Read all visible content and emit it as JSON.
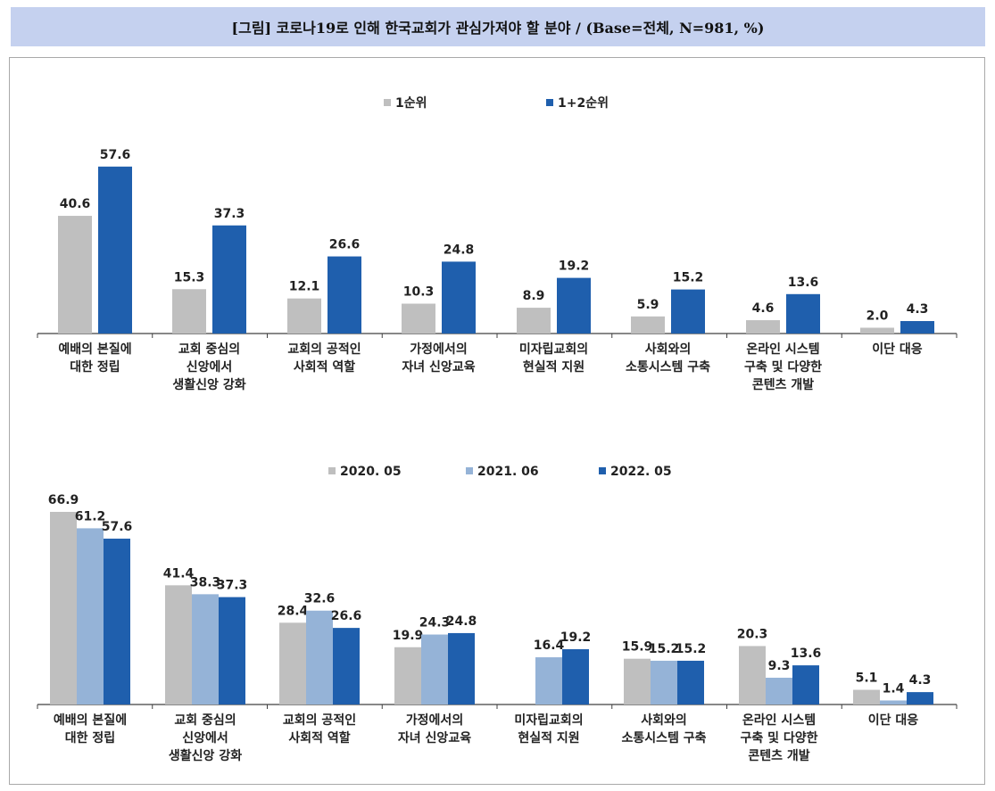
{
  "title": "[그림] 코로나19로 인해 한국교회가 관심가져야 할 분야 / (Base=전체, N=981, %)",
  "colors": {
    "gray": "#bfbfbf",
    "light_blue": "#95b3d7",
    "blue": "#1f5fad",
    "title_bg": "#c5d1ef"
  },
  "chart_data": [
    {
      "type": "bar",
      "categories": [
        [
          "예배의 본질에",
          "대한 정립"
        ],
        [
          "교회 중심의",
          "신앙에서",
          "생활신앙 강화"
        ],
        [
          "교회의 공적인",
          "사회적 역할"
        ],
        [
          "가정에서의",
          "자녀 신앙교육"
        ],
        [
          "미자립교회의",
          "현실적 지원"
        ],
        [
          "사회와의",
          "소통시스템 구축"
        ],
        [
          "온라인 시스템",
          "구축 및 다양한",
          "콘텐츠 개발"
        ],
        [
          "이단 대응"
        ]
      ],
      "series": [
        {
          "name": "1순위",
          "color": "#bfbfbf",
          "values": [
            40.6,
            15.3,
            12.1,
            10.3,
            8.9,
            5.9,
            4.6,
            2.0
          ]
        },
        {
          "name": "1+2순위",
          "color": "#1f5fad",
          "values": [
            57.6,
            37.3,
            26.6,
            24.8,
            19.2,
            15.2,
            13.6,
            4.3
          ]
        }
      ],
      "value_labels": [
        [
          "40.6",
          "15.3",
          "12.1",
          "10.3",
          "8.9",
          "5.9",
          "4.6",
          "2.0"
        ],
        [
          "57.6",
          "37.3",
          "26.6",
          "24.8",
          "19.2",
          "15.2",
          "13.6",
          "4.3"
        ]
      ],
      "ylim": [
        0,
        60
      ],
      "legend": "top-center",
      "grid": false
    },
    {
      "type": "bar",
      "categories": [
        [
          "예배의 본질에",
          "대한 정립"
        ],
        [
          "교회 중심의",
          "신앙에서",
          "생활신앙 강화"
        ],
        [
          "교회의 공적인",
          "사회적 역할"
        ],
        [
          "가정에서의",
          "자녀 신앙교육"
        ],
        [
          "미자립교회의",
          "현실적 지원"
        ],
        [
          "사회와의",
          "소통시스템 구축"
        ],
        [
          "온라인 시스템",
          "구축 및 다양한",
          "콘텐츠 개발"
        ],
        [
          "이단 대응"
        ]
      ],
      "series": [
        {
          "name": "2020. 05",
          "color": "#bfbfbf",
          "values": [
            66.9,
            41.4,
            28.4,
            19.9,
            null,
            15.9,
            20.3,
            5.1
          ]
        },
        {
          "name": "2021. 06",
          "color": "#95b3d7",
          "values": [
            61.2,
            38.3,
            32.6,
            24.3,
            16.4,
            15.2,
            9.3,
            1.4
          ]
        },
        {
          "name": "2022. 05",
          "color": "#1f5fad",
          "values": [
            57.6,
            37.3,
            26.6,
            24.8,
            19.2,
            15.2,
            13.6,
            4.3
          ]
        }
      ],
      "value_labels": [
        [
          "66.9",
          "41.4",
          "28.4",
          "19.9",
          null,
          "15.9",
          "20.3",
          "5.1"
        ],
        [
          "61.2",
          "38.3",
          "32.6",
          "24.3",
          "16.4",
          "15.2",
          "9.3",
          "1.4"
        ],
        [
          "57.6",
          "37.3",
          "26.6",
          "24.8",
          "19.2",
          "15.2",
          "13.6",
          "4.3"
        ]
      ],
      "ylim": [
        0,
        70
      ],
      "legend": "top-center",
      "grid": false
    }
  ]
}
